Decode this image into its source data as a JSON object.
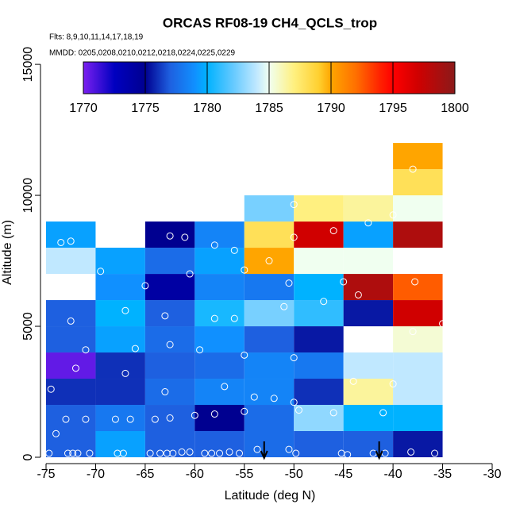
{
  "chart_data": {
    "type": "heatmap",
    "title": "ORCAS RF08-19 CH4_QCLS_trop",
    "subtitle": "Flts: 8,9,10,11,14,17,18,19",
    "annotation": "MMDD: 0205,0208,0210,0212,0218,0224,0225,0229",
    "x_label": "Latitude (deg N)",
    "y_label": "Altitude (m)",
    "xlim": [
      -75,
      -30
    ],
    "ylim": [
      0,
      15700
    ],
    "xticks": [
      -75,
      -70,
      -65,
      -60,
      -55,
      -50,
      -45,
      -40,
      -35,
      -30
    ],
    "yticks": [
      0,
      5000,
      10000,
      15000
    ],
    "x_edges": [
      -75,
      -70,
      -65,
      -60,
      -55,
      -50,
      -45,
      -40,
      -35
    ],
    "y_edges": [
      0,
      1000,
      2000,
      3000,
      4000,
      5000,
      6000,
      7000,
      8000,
      9000,
      10000,
      11000,
      12000
    ],
    "values": [
      [
        1777,
        1779.5,
        1777,
        1777,
        1777.5,
        1777,
        1777,
        1775.5
      ],
      [
        1777,
        1778,
        1777,
        1775,
        1777.5,
        1783,
        1780,
        1780
      ],
      [
        1776,
        1776,
        1777.5,
        1778.5,
        1778.5,
        1776,
        1786.5,
        1784
      ],
      [
        1770.5,
        1776,
        1777,
        1777.5,
        1778.5,
        1778,
        1784,
        1784
      ],
      [
        1777,
        1779.5,
        1777.5,
        1779,
        1777,
        1775.5,
        null,
        1785.5
      ],
      [
        1777,
        1780,
        1777,
        1780.5,
        1782.5,
        1781,
        1775.5,
        1797
      ],
      [
        null,
        1779,
        1774,
        1778.5,
        1778,
        1780,
        1798.5,
        1792.5
      ],
      [
        1784,
        1779.5,
        1777.5,
        1779.5,
        1790,
        1785,
        1785,
        null
      ],
      [
        1779.5,
        null,
        1775,
        1778.5,
        1788,
        1797,
        1779.5,
        1798.5
      ],
      [
        null,
        null,
        null,
        null,
        1782.5,
        1787,
        1786.5,
        1785
      ],
      [
        null,
        null,
        null,
        null,
        null,
        null,
        null,
        1788
      ],
      [
        null,
        null,
        null,
        null,
        null,
        null,
        null,
        1790
      ]
    ],
    "clim": [
      1770,
      1800
    ],
    "cticks": [
      1770,
      1775,
      1780,
      1785,
      1790,
      1795,
      1800
    ],
    "colorscale": [
      [
        1770,
        "#7b20f0"
      ],
      [
        1772.5,
        "#0000c0"
      ],
      [
        1775,
        "#000090"
      ],
      [
        1777,
        "#1e60e0"
      ],
      [
        1779,
        "#1090ff"
      ],
      [
        1780,
        "#00b2ff"
      ],
      [
        1782,
        "#60c8ff"
      ],
      [
        1784,
        "#c0e8ff"
      ],
      [
        1785,
        "#f0fff0"
      ],
      [
        1787,
        "#fff080"
      ],
      [
        1789,
        "#ffd030"
      ],
      [
        1790,
        "#ffa500"
      ],
      [
        1792,
        "#ff7000"
      ],
      [
        1794,
        "#ff2000"
      ],
      [
        1795,
        "#ff0000"
      ],
      [
        1797,
        "#d00000"
      ],
      [
        1800,
        "#8b1a1a"
      ]
    ],
    "points": {
      "x": [
        -74.7,
        -72.8,
        -72.3,
        -71.8,
        -70.6,
        -67.8,
        -67.2,
        -64.5,
        -63.5,
        -62.8,
        -62.2,
        -61.3,
        -60.5,
        -59,
        -58.3,
        -57.5,
        -56.5,
        -55.5,
        -53.7,
        -50.5,
        -49.8,
        -45.2,
        -44.6,
        -42,
        -40.8,
        -38.2,
        -35.8,
        -74,
        -73,
        -71,
        -68,
        -66.5,
        -64,
        -62.5,
        -60,
        -58,
        -55,
        -52,
        -49.5,
        -46,
        -41,
        -74.5,
        -72,
        -67,
        -63,
        -57,
        -54,
        -50,
        -44,
        -40,
        -71,
        -66,
        -62.5,
        -59.5,
        -55,
        -50,
        -42,
        -38,
        -35,
        -72.5,
        -67,
        -63,
        -58,
        -56,
        -51,
        -47,
        -43.5,
        -37.8,
        -69.5,
        -65,
        -60.5,
        -55,
        -50.5,
        -45,
        -73.5,
        -72.5,
        -62.5,
        -61,
        -58,
        -56,
        -52.5,
        -50,
        -46,
        -42.5,
        -40,
        -50,
        -38
      ],
      "y": [
        150,
        150,
        150,
        150,
        150,
        150,
        150,
        150,
        150,
        150,
        150,
        200,
        200,
        150,
        150,
        150,
        200,
        150,
        300,
        300,
        150,
        150,
        100,
        150,
        150,
        200,
        150,
        900,
        1450,
        1450,
        1450,
        1450,
        1450,
        1500,
        1600,
        1650,
        1750,
        2250,
        1800,
        1700,
        1700,
        2600,
        3400,
        3200,
        2500,
        2700,
        2300,
        2100,
        2900,
        2800,
        4100,
        4150,
        4300,
        4100,
        3900,
        3800,
        4600,
        4800,
        5100,
        5200,
        5600,
        5400,
        5300,
        5300,
        5750,
        5950,
        6200,
        6700,
        7100,
        6550,
        7000,
        7150,
        6650,
        6700,
        8200,
        8250,
        8450,
        8400,
        8100,
        7900,
        7500,
        8400,
        8650,
        8950,
        9250,
        9650,
        11000
      ]
    },
    "arrows_x": [
      -53,
      -41.4
    ]
  }
}
